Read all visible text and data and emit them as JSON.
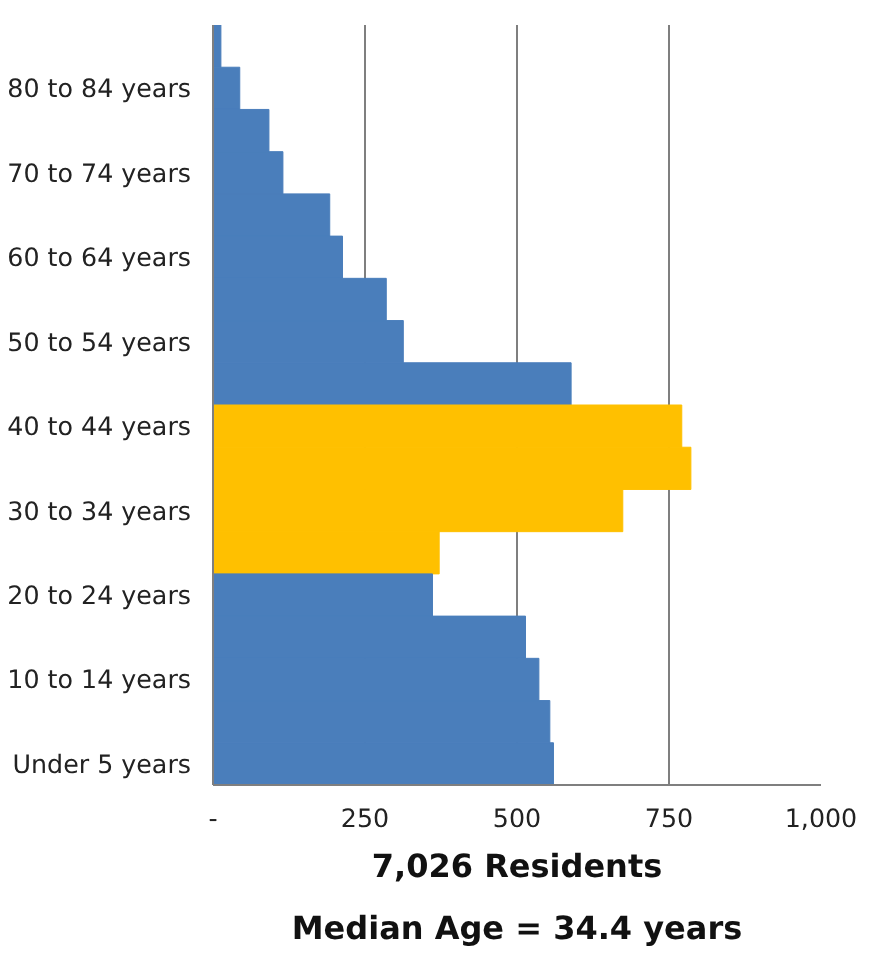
{
  "chart_data": {
    "type": "bar",
    "orientation": "horizontal",
    "title": "7,026 Residents",
    "subtitle": "Median Age = 34.4 years",
    "categories": [
      null,
      "80 to 84 years",
      null,
      "70 to 74 years",
      null,
      "60 to 64 years",
      null,
      "50 to 54 years",
      null,
      "40 to 44 years",
      null,
      "30 to 34 years",
      null,
      "20 to 24 years",
      null,
      "10 to 14 years",
      null,
      "Under 5 years"
    ],
    "values": [
      13,
      44,
      92,
      115,
      192,
      213,
      285,
      313,
      589,
      771,
      786,
      674,
      372,
      361,
      514,
      536,
      554,
      560
    ],
    "colors": [
      "#4a7ebb",
      "#4a7ebb",
      "#4a7ebb",
      "#4a7ebb",
      "#4a7ebb",
      "#4a7ebb",
      "#4a7ebb",
      "#4a7ebb",
      "#4a7ebb",
      "#ffc000",
      "#ffc000",
      "#ffc000",
      "#ffc000",
      "#4a7ebb",
      "#4a7ebb",
      "#4a7ebb",
      "#4a7ebb",
      "#4a7ebb"
    ],
    "xlim": [
      0,
      1000
    ],
    "xticks": [
      {
        "value": 0,
        "label": "-"
      },
      250,
      500,
      750,
      {
        "value": 1000,
        "label": "1,000"
      }
    ],
    "grid": "x"
  }
}
